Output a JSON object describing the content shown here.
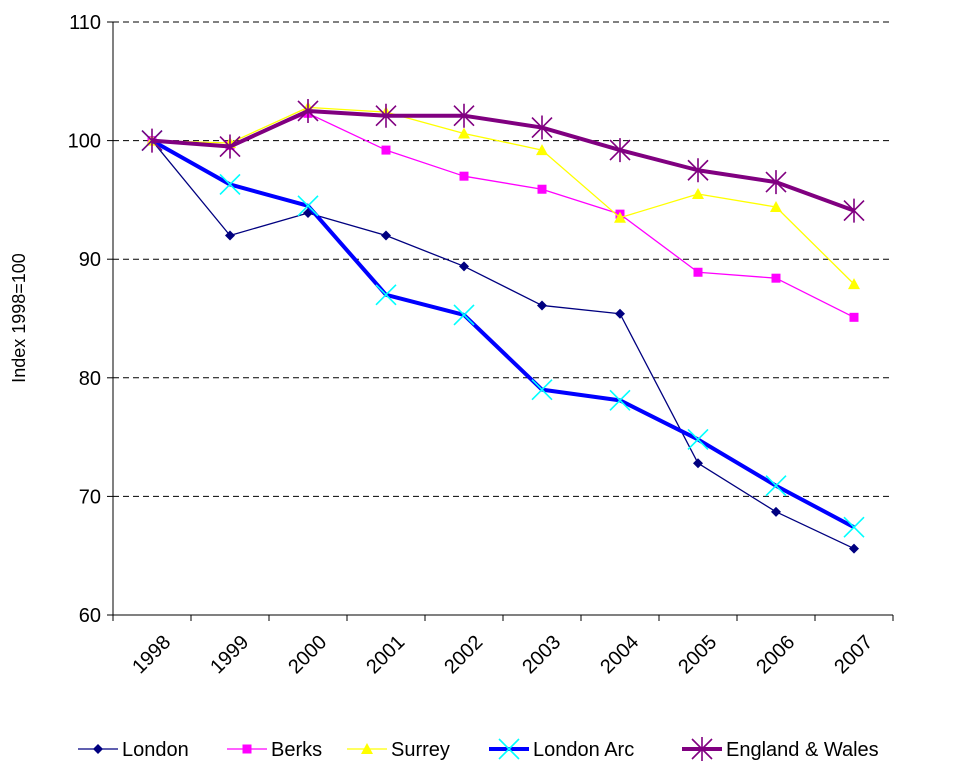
{
  "chart_data": {
    "type": "line",
    "ylabel": "Index 1998=100",
    "xlabel": "",
    "categories": [
      "1998",
      "1999",
      "2000",
      "2001",
      "2002",
      "2003",
      "2004",
      "2005",
      "2006",
      "2007"
    ],
    "ylim": [
      60,
      110
    ],
    "yticks": [
      "60",
      "70",
      "80",
      "90",
      "100",
      "110"
    ],
    "grid": "horizontal dashed",
    "legend": "bottom",
    "series": [
      {
        "name": "London",
        "color": "#000080",
        "marker": "diamond",
        "values": [
          100,
          92.0,
          93.9,
          92.0,
          89.4,
          86.1,
          85.4,
          72.8,
          68.7,
          65.6
        ]
      },
      {
        "name": "Berks",
        "color": "#FF00FF",
        "marker": "square",
        "values": [
          100,
          99.6,
          102.3,
          99.2,
          97.0,
          95.9,
          93.8,
          88.9,
          88.4,
          85.1
        ]
      },
      {
        "name": "Surrey",
        "color": "#FFFF00",
        "marker": "triangle",
        "values": [
          100,
          99.8,
          102.8,
          102.4,
          100.6,
          99.2,
          93.5,
          95.5,
          94.4,
          87.9
        ]
      },
      {
        "name": "London Arc",
        "color": "#0000FF",
        "marker": "x-cyan",
        "values": [
          100,
          96.3,
          94.5,
          87.0,
          85.3,
          79.0,
          78.1,
          74.8,
          70.9,
          67.4
        ]
      },
      {
        "name": "England & Wales",
        "color": "#800080",
        "marker": "star",
        "values": [
          100,
          99.5,
          102.5,
          102.1,
          102.1,
          101.1,
          99.2,
          97.5,
          96.5,
          94.1
        ]
      }
    ]
  }
}
